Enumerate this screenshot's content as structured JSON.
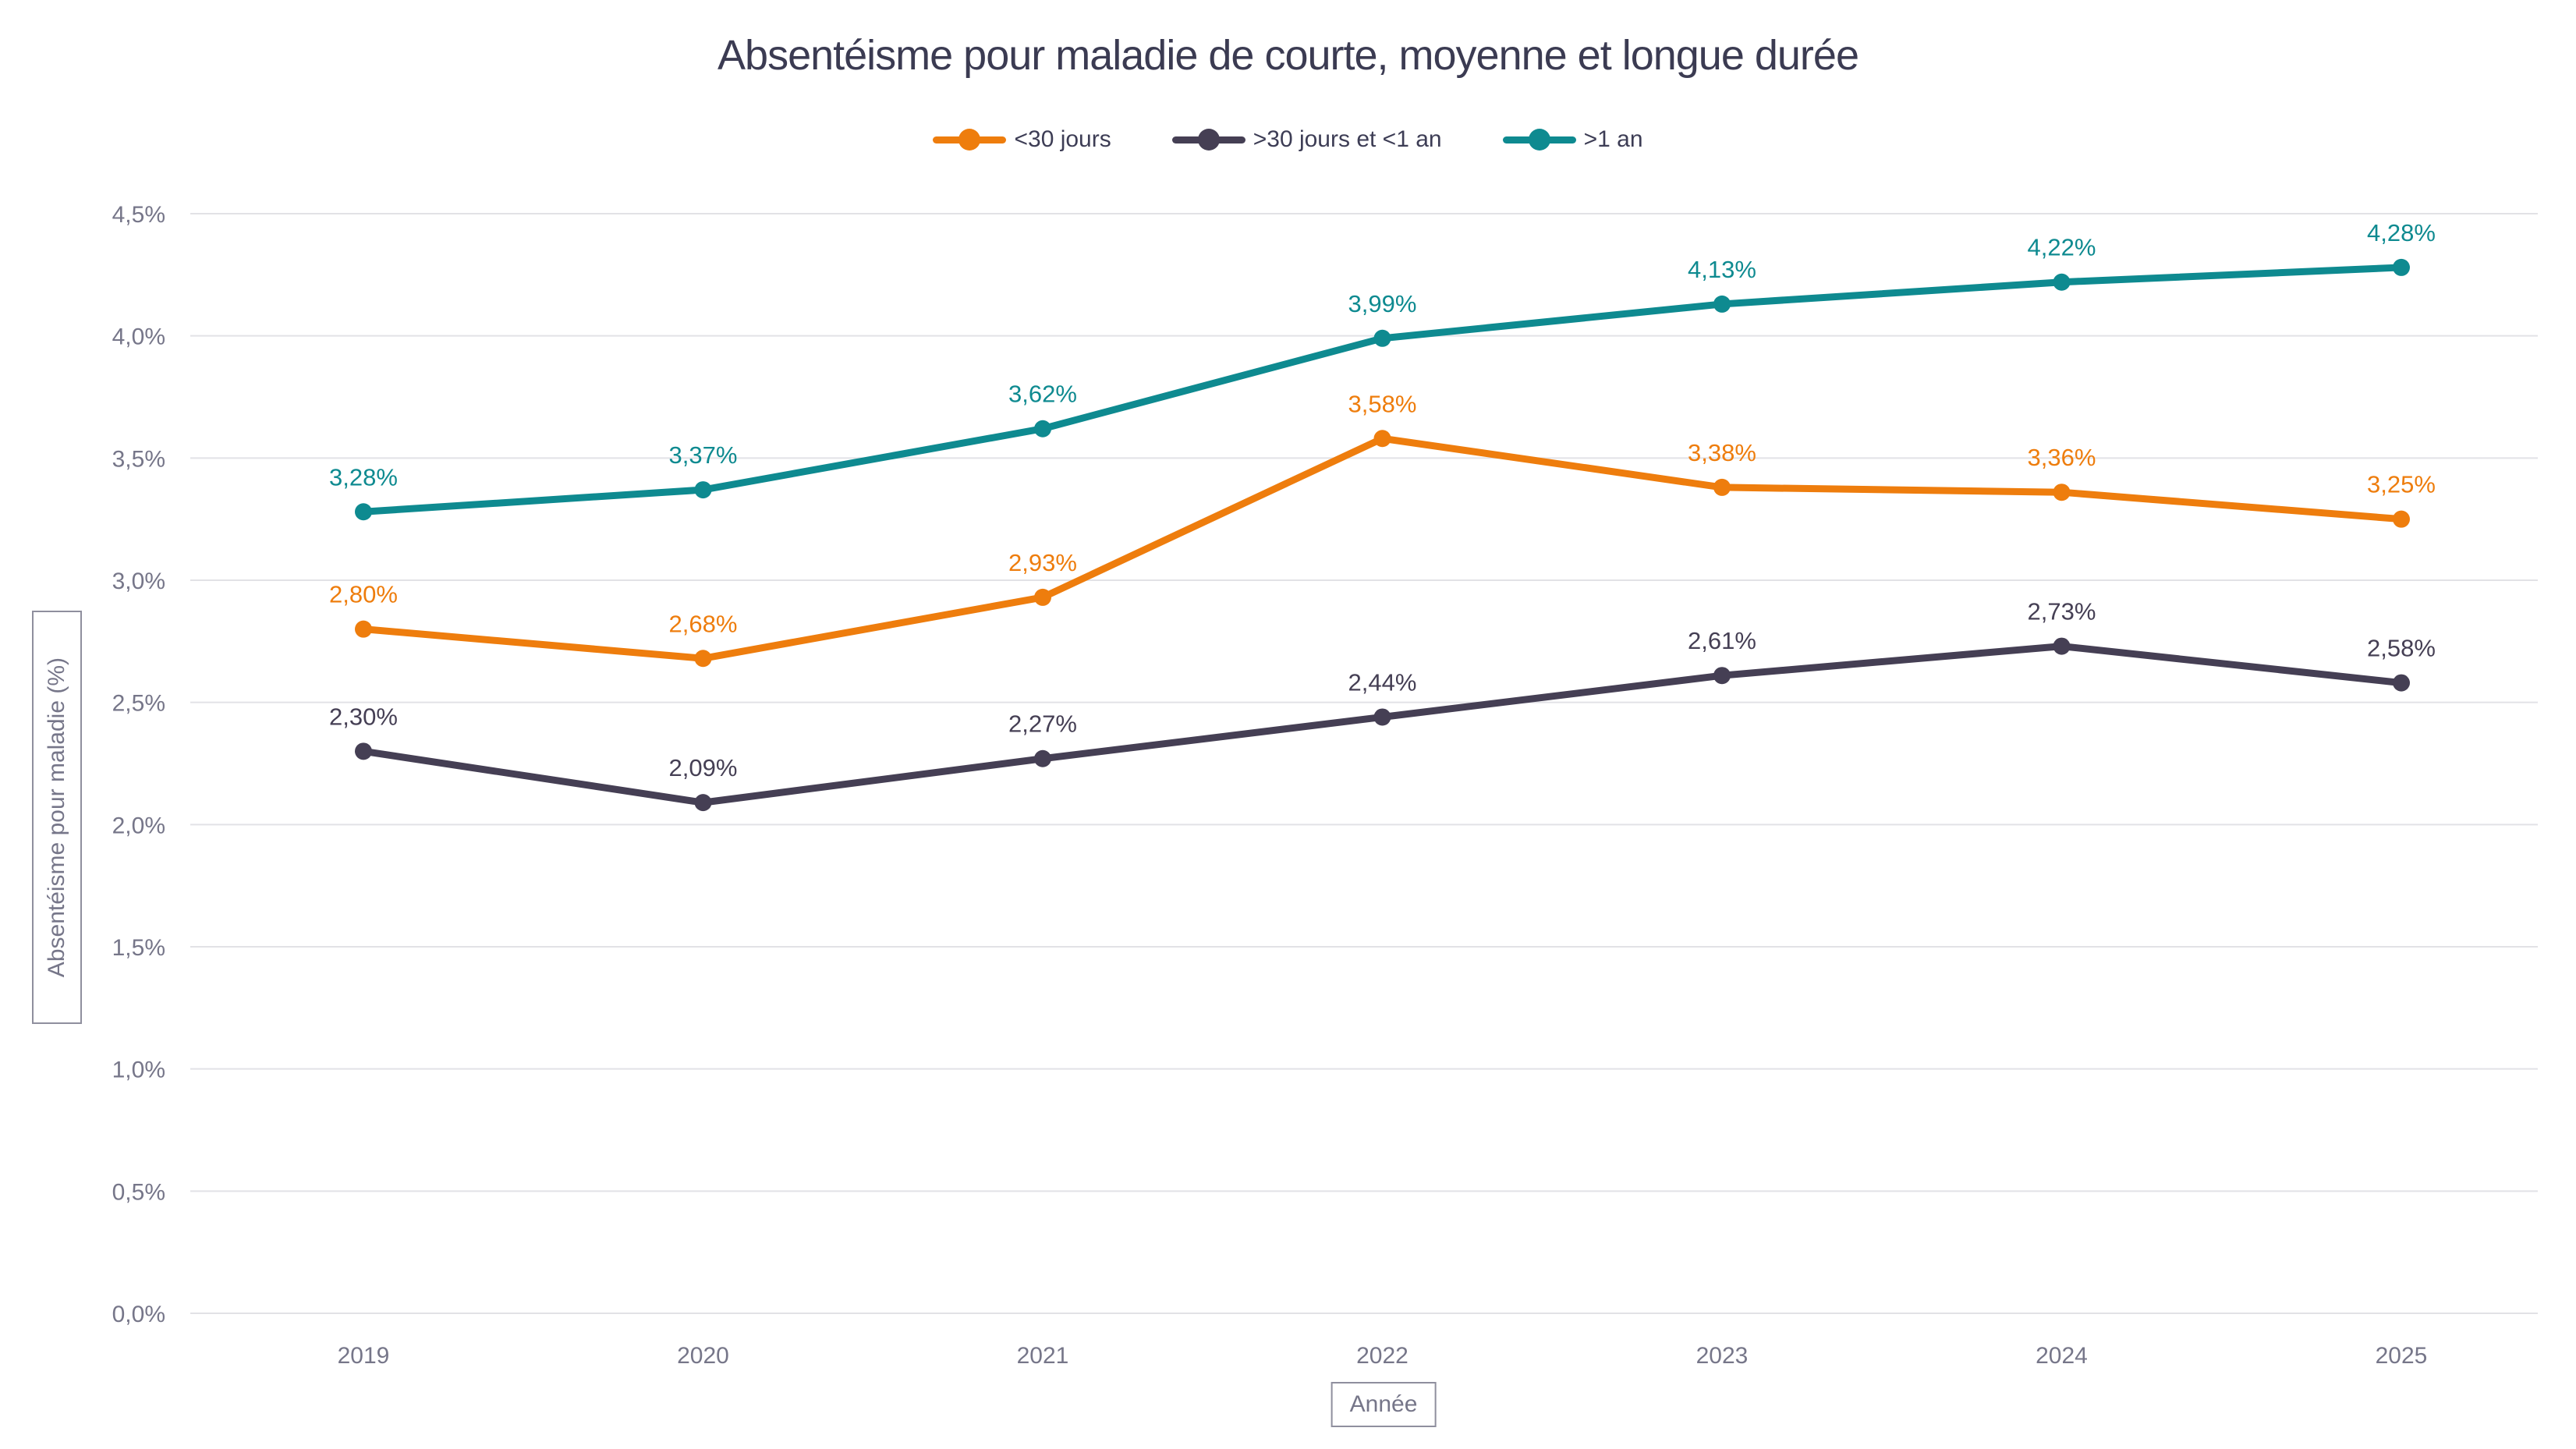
{
  "style": {
    "background": "#FFFFFF",
    "title_color": "#3B3B52",
    "axis_text_color": "#767689",
    "gridline_color": "#E2E2E6",
    "axis_box_border_color": "#8F8F9E",
    "legend_text_color": "#3D3D55"
  },
  "chart_data": {
    "type": "line",
    "title": "Absentéisme pour maladie de courte, moyenne et longue durée",
    "xlabel": "Année",
    "ylabel": "Absentéisme pour maladie (%)",
    "x": [
      "2019",
      "2020",
      "2021",
      "2022",
      "2023",
      "2024",
      "2025"
    ],
    "ylim": [
      0,
      4.5
    ],
    "grid": "horizontal",
    "legend_position": "top",
    "yticks": {
      "values": [
        0,
        0.5,
        1.0,
        1.5,
        2.0,
        2.5,
        3.0,
        3.5,
        4.0,
        4.5
      ],
      "labels": [
        "0,0%",
        "0,5%",
        "1,0%",
        "1,5%",
        "2,0%",
        "2,5%",
        "3,0%",
        "3,5%",
        "4,0%",
        "4,5%"
      ]
    },
    "series": [
      {
        "name": "<30 jours",
        "color": "#EE7D0D",
        "values": [
          2.8,
          2.68,
          2.93,
          3.58,
          3.38,
          3.36,
          3.25
        ],
        "point_labels": [
          "2,80%",
          "2,68%",
          "2,93%",
          "3,58%",
          "3,38%",
          "3,36%",
          "3,25%"
        ]
      },
      {
        "name": ">30 jours et <1 an",
        "color": "#453F54",
        "values": [
          2.3,
          2.09,
          2.27,
          2.44,
          2.61,
          2.73,
          2.58
        ],
        "point_labels": [
          "2,30%",
          "2,09%",
          "2,27%",
          "2,44%",
          "2,61%",
          "2,73%",
          "2,58%"
        ]
      },
      {
        "name": ">1 an",
        "color": "#0E8A90",
        "values": [
          3.28,
          3.37,
          3.62,
          3.99,
          4.13,
          4.22,
          4.28
        ],
        "point_labels": [
          "3,28%",
          "3,37%",
          "3,62%",
          "3,99%",
          "4,13%",
          "4,22%",
          "4,28%"
        ]
      }
    ]
  }
}
